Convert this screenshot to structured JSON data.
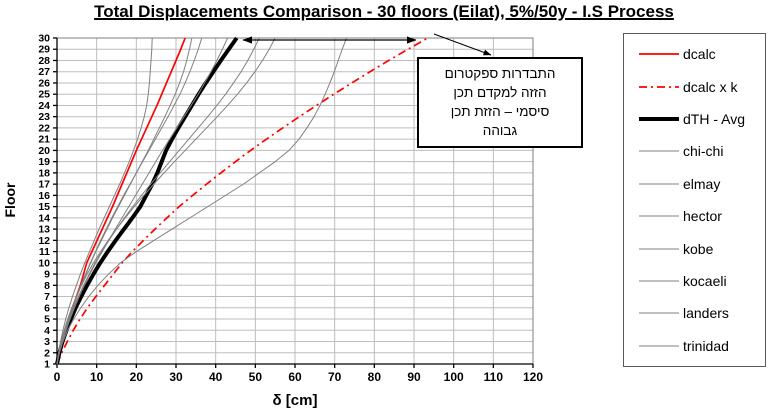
{
  "chart_data": {
    "type": "line",
    "title": "Total Displacements Comparison - 30 floors (Eilat), 5%/50y - I.S Process",
    "xlabel": "δ [cm]",
    "ylabel": "Floor",
    "xlim": [
      0,
      120
    ],
    "x_ticks": [
      0,
      10,
      20,
      30,
      40,
      50,
      60,
      70,
      80,
      90,
      100,
      110,
      120
    ],
    "floors": [
      1,
      2,
      3,
      4,
      5,
      6,
      7,
      8,
      9,
      10,
      11,
      12,
      13,
      14,
      15,
      16,
      17,
      18,
      19,
      20,
      21,
      22,
      23,
      24,
      25,
      26,
      27,
      28,
      29,
      30
    ],
    "grid": true,
    "legend_position": "right",
    "orientation": "displacement on x, floor on y",
    "series": [
      {
        "name": "dcalc",
        "color": "#FF0000",
        "width": 1.7,
        "dash": "",
        "values": [
          0,
          0.6,
          1.3,
          2.1,
          3,
          3.9,
          4.9,
          5.9,
          6.7,
          7.5,
          8.8,
          10.1,
          11.4,
          12.7,
          14,
          15.2,
          16.4,
          17.6,
          18.8,
          20,
          21.3,
          22.6,
          23.9,
          25.2,
          26.4,
          27.6,
          28.8,
          30,
          31.2,
          32.3
        ]
      },
      {
        "name": "dcalc x k",
        "color": "#FF0000",
        "width": 1.7,
        "dash": "8 4 2 4",
        "values": [
          0,
          1.2,
          2.6,
          4.1,
          5.8,
          7.7,
          9.8,
          12,
          14.2,
          16.4,
          19,
          21.8,
          24.7,
          27.7,
          30.8,
          34.2,
          37.7,
          41.3,
          45,
          48.8,
          52.8,
          56.9,
          61.1,
          65.4,
          69.8,
          74.3,
          78.9,
          83.6,
          88.5,
          93.5
        ]
      },
      {
        "name": "dTH - Avg",
        "color": "#000000",
        "width": 4,
        "dash": "",
        "values": [
          0,
          0.6,
          1.4,
          2.4,
          3.5,
          4.7,
          6.1,
          7.6,
          9.2,
          10.9,
          12.8,
          14.8,
          16.9,
          19,
          21,
          22.5,
          24,
          25.3,
          26.4,
          27.5,
          29,
          30.6,
          32.3,
          34,
          35.7,
          37.5,
          39.4,
          41.3,
          43.3,
          45.3
        ]
      },
      {
        "name": "chi-chi",
        "color": "#808080",
        "width": 1,
        "dash": "",
        "values": [
          0,
          0.4,
          0.9,
          1.5,
          2.2,
          3,
          3.9,
          4.9,
          5.9,
          7,
          8.2,
          9.4,
          10.6,
          11.9,
          13.2,
          14.5,
          15.8,
          17,
          18.2,
          19.3,
          20.3,
          21.2,
          22,
          22.6,
          23,
          23.3,
          23.5,
          23.7,
          23.9,
          24
        ]
      },
      {
        "name": "elmay",
        "color": "#808080",
        "width": 1,
        "dash": "",
        "values": [
          0,
          0.5,
          1.2,
          2,
          2.9,
          3.9,
          5,
          6.1,
          7.3,
          8.5,
          9.8,
          11.2,
          12.6,
          14,
          15.5,
          17,
          18.5,
          20,
          21.5,
          23,
          24.4,
          25.8,
          27.2,
          28.5,
          29.8,
          30.9,
          31.9,
          32.7,
          33.4,
          34
        ]
      },
      {
        "name": "hector",
        "color": "#808080",
        "width": 1,
        "dash": "",
        "values": [
          0,
          0.5,
          1.1,
          1.9,
          2.8,
          3.8,
          4.9,
          6,
          7.2,
          8.4,
          9.7,
          11,
          12.4,
          13.8,
          15.3,
          16.8,
          18.4,
          20,
          21.6,
          23.2,
          24.8,
          26.4,
          28,
          29.5,
          31,
          32.3,
          33.5,
          34.6,
          35.6,
          36.5
        ]
      },
      {
        "name": "kobe",
        "color": "#808080",
        "width": 1,
        "dash": "",
        "values": [
          0,
          0.6,
          1.4,
          2.3,
          3.3,
          4.4,
          5.6,
          6.9,
          8.3,
          9.8,
          11.4,
          13,
          14.7,
          16.4,
          18.1,
          19.8,
          21.5,
          23.2,
          24.9,
          26.6,
          28.4,
          30.2,
          32,
          33.8,
          35.6,
          37.2,
          38.8,
          40.3,
          41.7,
          43
        ]
      },
      {
        "name": "kocaeli",
        "color": "#808080",
        "width": 1,
        "dash": "",
        "values": [
          0,
          0.5,
          1.2,
          2.1,
          3.1,
          4.2,
          5.4,
          6.7,
          8.1,
          9.6,
          11.3,
          13.1,
          15,
          17,
          19.1,
          21.3,
          23.6,
          26,
          28.4,
          30.8,
          33.2,
          35.6,
          38,
          40.3,
          42.5,
          44.5,
          46.4,
          48.1,
          49.6,
          51
        ]
      },
      {
        "name": "landers",
        "color": "#808080",
        "width": 1,
        "dash": "",
        "values": [
          0,
          0.4,
          1,
          1.8,
          2.7,
          3.7,
          4.9,
          6.2,
          7.6,
          9.2,
          11,
          12.9,
          15,
          17.2,
          19.5,
          21.9,
          24.4,
          27,
          29.6,
          32.3,
          35,
          37.7,
          40.4,
          43,
          45.5,
          47.8,
          49.9,
          51.8,
          53.5,
          55
        ]
      },
      {
        "name": "trinidad",
        "color": "#808080",
        "width": 1,
        "dash": "",
        "values": [
          0,
          0.6,
          1.5,
          2.7,
          4.2,
          6,
          8,
          10.3,
          13,
          16,
          20,
          24.5,
          29,
          33.5,
          38,
          42.5,
          47,
          51,
          55,
          58.5,
          61,
          63,
          64.8,
          66.3,
          67.6,
          68.8,
          69.9,
          70.9,
          71.9,
          73
        ]
      }
    ],
    "annotation": {
      "lines": [
        "התבדרות ספקטרום",
        "הזזה למקדם תכן",
        "סיסמי – הזזת תכן",
        "גבוהה"
      ],
      "arrows": [
        {
          "type": "double-headed",
          "from": "dTH - Avg at floor 30",
          "to": "dcalc x k at floor 30"
        },
        {
          "type": "single",
          "from": "dcalc x k top end",
          "to": "callout box"
        }
      ]
    },
    "colors": {
      "accent_red": "#FF0000",
      "series_gray": "#808080",
      "gridline": "#BDBDBD"
    }
  }
}
